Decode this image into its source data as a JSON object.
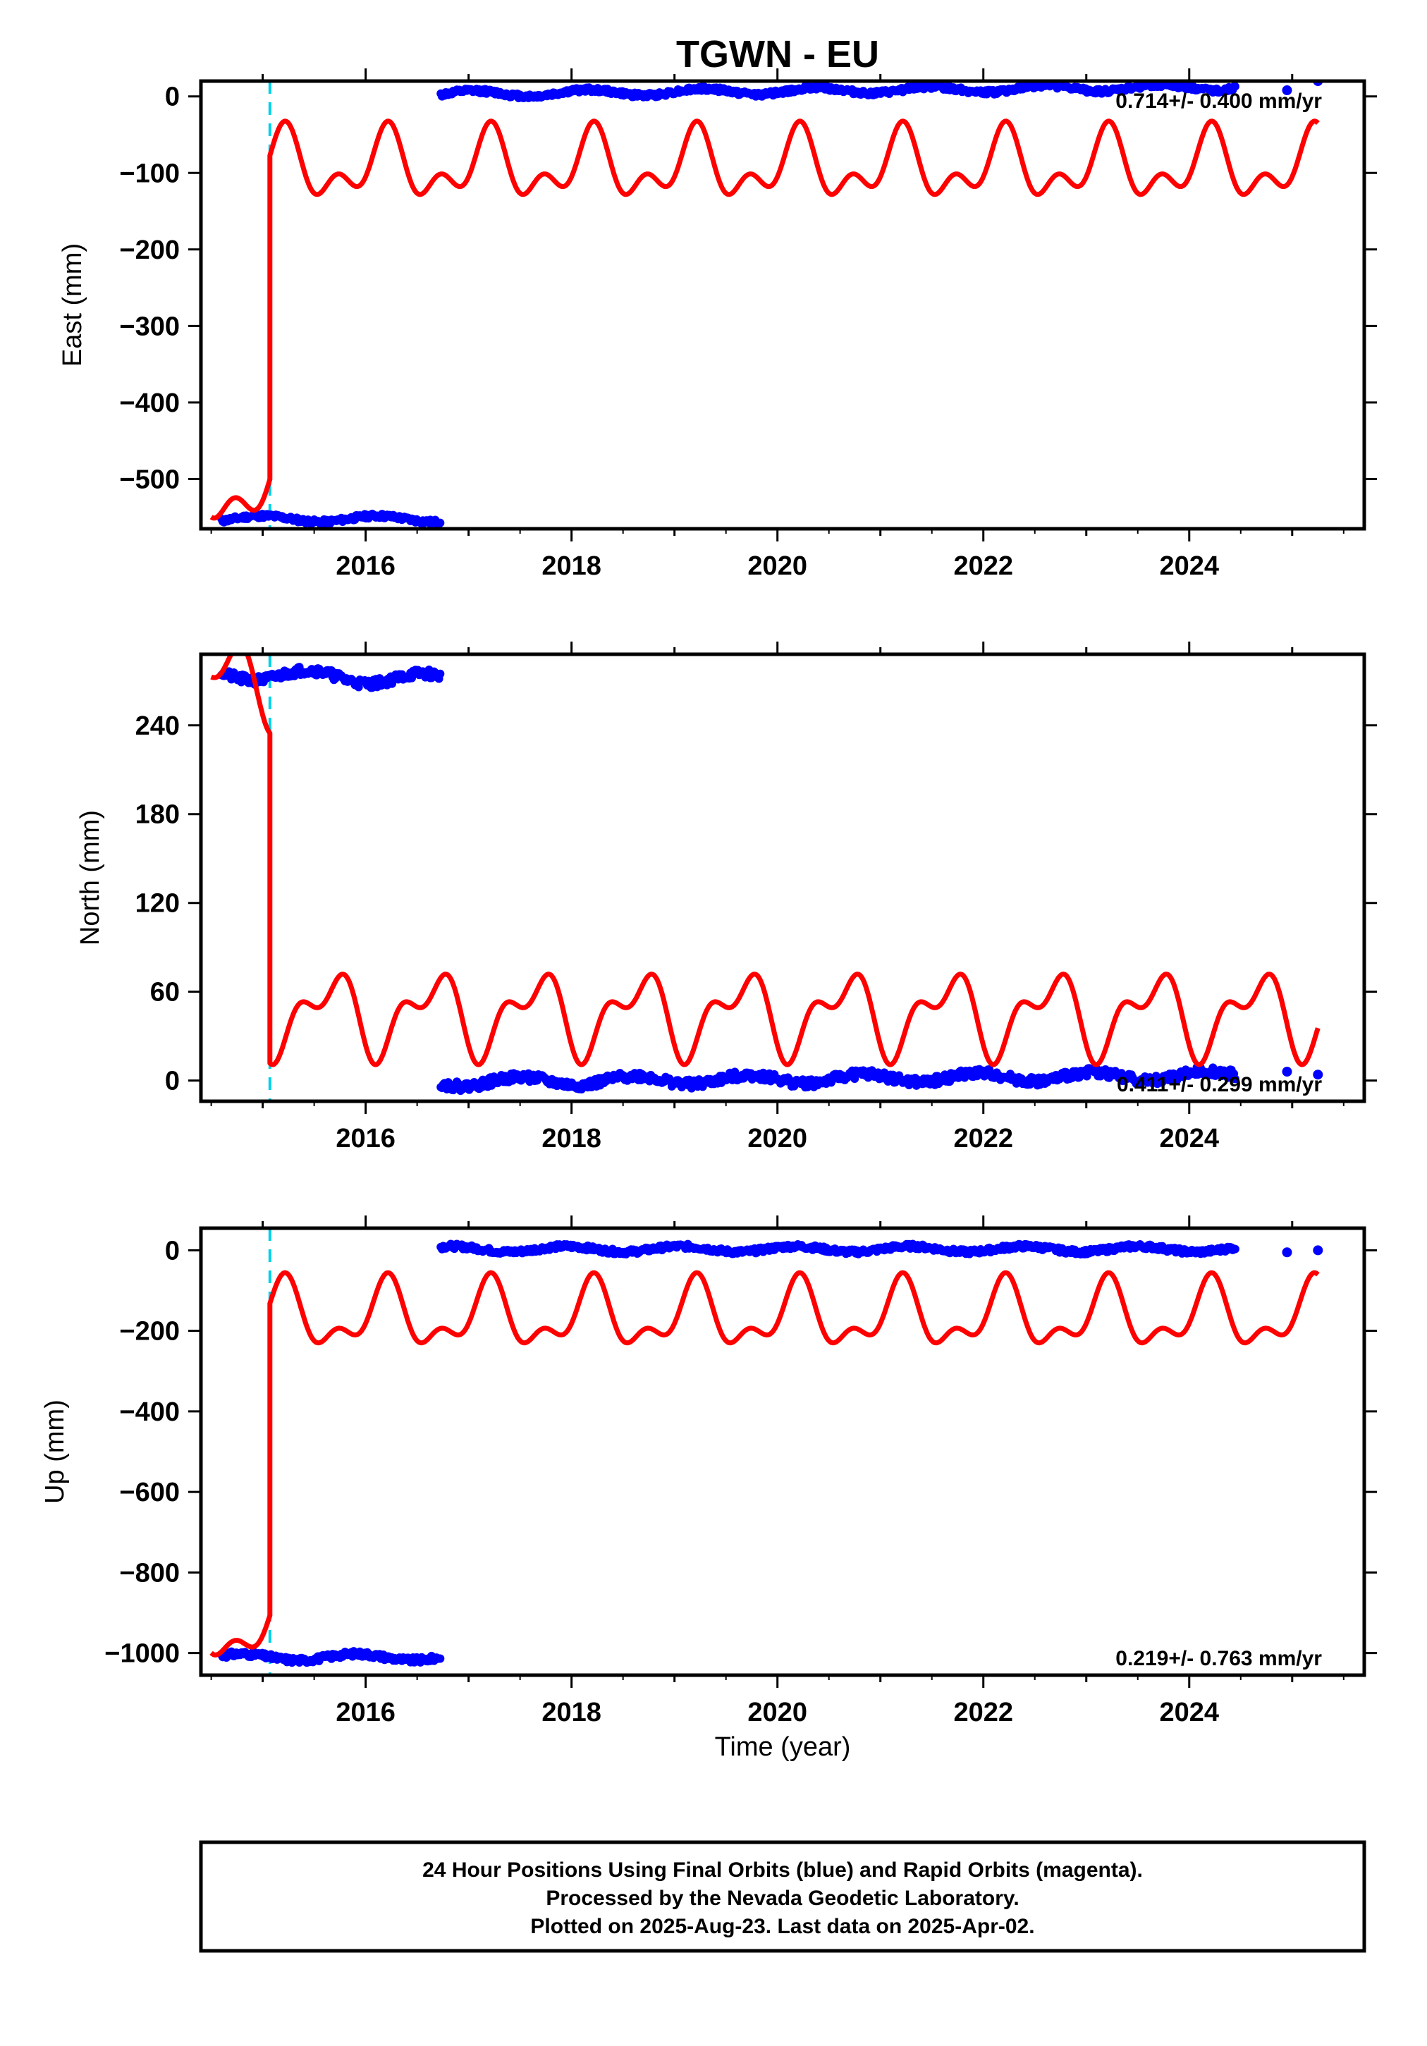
{
  "figure": {
    "title": "TGWN - EU",
    "x_label": "Time (year)",
    "footer_lines": [
      "24 Hour Positions Using Final Orbits (blue) and Rapid Orbits (magenta).",
      "Processed by the Nevada Geodetic Laboratory.",
      "Plotted on 2025-Aug-23. Last data on 2025-Apr-02."
    ],
    "colors": {
      "final": "#0000ff",
      "model": "#ff0000",
      "equipment_change": "#00d0e8",
      "frame": "#000000"
    }
  },
  "chart_data": [
    {
      "type": "scatter",
      "component": "East",
      "ylabel": "East (mm)",
      "xlabel": "",
      "xlim": [
        2014.4,
        2025.7
      ],
      "ylim": [
        -565,
        20
      ],
      "xticks": [
        2016,
        2018,
        2020,
        2022,
        2024
      ],
      "yticks": [
        0,
        -100,
        -200,
        -300,
        -400,
        -500
      ],
      "ytick_labels": [
        "0",
        "−100",
        "−200",
        "−300",
        "−400",
        "−500"
      ],
      "rate_label": "0.714+/- 0.400 mm/yr",
      "rate_position": "top-right",
      "offset_epoch": 2015.07,
      "final_segments": [
        {
          "x_start": 2014.6,
          "x_end": 2016.73,
          "level": -552,
          "amp": 4,
          "noise": 3,
          "seed": 11
        },
        {
          "x_start": 2016.73,
          "x_end": 2024.45,
          "level": 3,
          "amp": 4,
          "noise": 3,
          "trend": 1.2,
          "seed": 12
        }
      ],
      "final_points_extra": [
        [
          2024.95,
          8
        ],
        [
          2025.25,
          20
        ]
      ],
      "model": {
        "x_start": 2014.5,
        "offset_epoch": 2015.07,
        "pre_level": -515,
        "post_level": -92,
        "annual_amp": 35,
        "annual_phase": 0.95,
        "semi_amp": 25,
        "semi_phase": 0.6
      }
    },
    {
      "type": "scatter",
      "component": "North",
      "ylabel": "North (mm)",
      "xlabel": "",
      "xlim": [
        2014.4,
        2025.7
      ],
      "ylim": [
        -14,
        288
      ],
      "xticks": [
        2016,
        2018,
        2020,
        2022,
        2024
      ],
      "yticks": [
        0,
        60,
        120,
        180,
        240
      ],
      "ytick_labels": [
        "0",
        "60",
        "120",
        "180",
        "240"
      ],
      "rate_label": "0.411+/- 0.299 mm/yr",
      "rate_position": "bottom-right",
      "offset_epoch": 2015.07,
      "final_segments": [
        {
          "x_start": 2014.6,
          "x_end": 2016.73,
          "level": 275,
          "amp": 4,
          "noise": 3,
          "trend": -2,
          "seed": 21
        },
        {
          "x_start": 2016.73,
          "x_end": 2024.45,
          "level": -1,
          "amp": 3,
          "noise": 3,
          "trend": 0.6,
          "seed": 22
        }
      ],
      "final_points_extra": [
        [
          2024.95,
          6
        ],
        [
          2025.25,
          4
        ]
      ],
      "model": {
        "x_start": 2014.5,
        "offset_epoch": 2015.07,
        "pre_level": 268,
        "post_level": 45,
        "annual_amp": 22,
        "annual_phase": 0.4,
        "semi_amp": 14,
        "semi_phase": 0.2
      }
    },
    {
      "type": "scatter",
      "component": "Up",
      "ylabel": "Up (mm)",
      "xlabel": "Time (year)",
      "xlim": [
        2014.4,
        2025.7
      ],
      "ylim": [
        -1055,
        55
      ],
      "xticks": [
        2016,
        2018,
        2020,
        2022,
        2024
      ],
      "yticks": [
        0,
        -200,
        -400,
        -600,
        -800,
        -1000
      ],
      "ytick_labels": [
        "0",
        "−200",
        "−400",
        "−600",
        "−800",
        "−1000"
      ],
      "rate_label": "0.219+/- 0.763 mm/yr",
      "rate_position": "bottom-right",
      "offset_epoch": 2015.07,
      "final_segments": [
        {
          "x_start": 2014.6,
          "x_end": 2016.73,
          "level": -1010,
          "amp": 8,
          "noise": 7,
          "seed": 31
        },
        {
          "x_start": 2016.73,
          "x_end": 2024.45,
          "level": 3,
          "amp": 7,
          "noise": 6,
          "seed": 32
        }
      ],
      "final_points_extra": [
        [
          2024.95,
          -5
        ],
        [
          2025.25,
          0
        ]
      ],
      "model": {
        "x_start": 2014.5,
        "offset_epoch": 2015.07,
        "pre_level": -940,
        "post_level": -165,
        "annual_amp": 70,
        "annual_phase": 0.95,
        "semi_amp": 40,
        "semi_phase": 0.6
      }
    }
  ]
}
